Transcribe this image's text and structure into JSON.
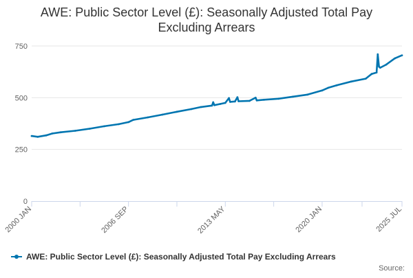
{
  "chart_data": {
    "type": "line",
    "title_lines": [
      "AWE: Public Sector Level (£): Seasonally Adjusted Total Pay",
      "Excluding Arrears"
    ],
    "xlabel": "",
    "ylabel": "",
    "ylim": [
      0,
      750
    ],
    "yticks": [
      0,
      250,
      500,
      750
    ],
    "xlim": [
      "2000-01",
      "2025-07"
    ],
    "xticks": [
      "2000 JAN",
      "2006 SEP",
      "2013 MAY",
      "2020 JAN",
      "2025 JUL"
    ],
    "grid": true,
    "legend_position": "bottom",
    "color": "#0075b0",
    "series": [
      {
        "name": "AWE: Public Sector Level (£): Seasonally Adjusted Total Pay Excluding Arrears",
        "points": [
          [
            "2000-01",
            315
          ],
          [
            "2000-06",
            311
          ],
          [
            "2001-01",
            318
          ],
          [
            "2001-06",
            327
          ],
          [
            "2002-01",
            333
          ],
          [
            "2003-01",
            340
          ],
          [
            "2004-01",
            350
          ],
          [
            "2005-01",
            362
          ],
          [
            "2006-01",
            372
          ],
          [
            "2006-09",
            382
          ],
          [
            "2007-01",
            393
          ],
          [
            "2008-01",
            405
          ],
          [
            "2009-01",
            418
          ],
          [
            "2010-01",
            432
          ],
          [
            "2011-01",
            445
          ],
          [
            "2011-09",
            455
          ],
          [
            "2012-06",
            462
          ],
          [
            "2012-07",
            478
          ],
          [
            "2012-08",
            464
          ],
          [
            "2013-01",
            470
          ],
          [
            "2013-05",
            475
          ],
          [
            "2013-08",
            498
          ],
          [
            "2013-09",
            480
          ],
          [
            "2014-01",
            482
          ],
          [
            "2014-03",
            502
          ],
          [
            "2014-04",
            483
          ],
          [
            "2015-01",
            485
          ],
          [
            "2015-06",
            500
          ],
          [
            "2015-07",
            487
          ],
          [
            "2016-01",
            490
          ],
          [
            "2017-01",
            495
          ],
          [
            "2018-01",
            505
          ],
          [
            "2019-01",
            515
          ],
          [
            "2020-01",
            535
          ],
          [
            "2020-06",
            548
          ],
          [
            "2021-01",
            560
          ],
          [
            "2022-01",
            578
          ],
          [
            "2023-01",
            592
          ],
          [
            "2023-06",
            615
          ],
          [
            "2023-10",
            622
          ],
          [
            "2023-11",
            710
          ],
          [
            "2023-12",
            650
          ],
          [
            "2024-01",
            645
          ],
          [
            "2024-06",
            660
          ],
          [
            "2025-01",
            690
          ],
          [
            "2025-07",
            705
          ]
        ]
      }
    ]
  },
  "source_label": "Source:"
}
